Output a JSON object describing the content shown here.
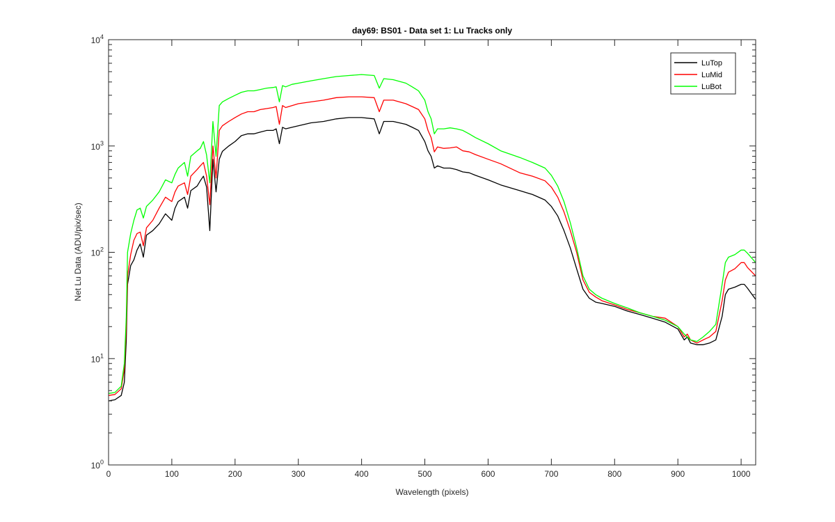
{
  "chart_data": {
    "type": "line",
    "title": "day69: BS01 - Data set 1: Lu Tracks only",
    "xlabel": "Wavelength (pixels)",
    "ylabel": "Net Lu Data (ADU/pix/sec)",
    "xlim": [
      0,
      1023
    ],
    "ylim": [
      1,
      10000
    ],
    "yscale": "log",
    "grid": false,
    "legend_position": "top-right",
    "x_ticks": [
      0,
      100,
      200,
      300,
      400,
      500,
      600,
      700,
      800,
      900,
      1000
    ],
    "x_tick_labels": [
      "0",
      "100",
      "200",
      "300",
      "400",
      "500",
      "600",
      "700",
      "800",
      "900",
      "1000"
    ],
    "y_ticks": [
      1,
      10,
      100,
      1000,
      10000
    ],
    "y_tick_labels": [
      {
        "base": "10",
        "exp": "0"
      },
      {
        "base": "10",
        "exp": "1"
      },
      {
        "base": "10",
        "exp": "2"
      },
      {
        "base": "10",
        "exp": "3"
      },
      {
        "base": "10",
        "exp": "4"
      }
    ],
    "series": [
      {
        "name": "LuTop",
        "color": "#000000",
        "points": [
          [
            0,
            4
          ],
          [
            10,
            4.1
          ],
          [
            20,
            4.5
          ],
          [
            25,
            6
          ],
          [
            28,
            15
          ],
          [
            30,
            50
          ],
          [
            35,
            75
          ],
          [
            40,
            85
          ],
          [
            45,
            105
          ],
          [
            50,
            120
          ],
          [
            55,
            90
          ],
          [
            60,
            145
          ],
          [
            70,
            160
          ],
          [
            80,
            185
          ],
          [
            90,
            230
          ],
          [
            100,
            200
          ],
          [
            105,
            260
          ],
          [
            110,
            300
          ],
          [
            120,
            330
          ],
          [
            125,
            260
          ],
          [
            130,
            380
          ],
          [
            140,
            420
          ],
          [
            145,
            470
          ],
          [
            150,
            520
          ],
          [
            155,
            410
          ],
          [
            160,
            160
          ],
          [
            165,
            750
          ],
          [
            170,
            370
          ],
          [
            175,
            750
          ],
          [
            180,
            890
          ],
          [
            190,
            1000
          ],
          [
            200,
            1100
          ],
          [
            210,
            1250
          ],
          [
            220,
            1300
          ],
          [
            230,
            1300
          ],
          [
            240,
            1350
          ],
          [
            250,
            1400
          ],
          [
            260,
            1400
          ],
          [
            265,
            1450
          ],
          [
            270,
            1050
          ],
          [
            275,
            1500
          ],
          [
            280,
            1450
          ],
          [
            290,
            1500
          ],
          [
            300,
            1550
          ],
          [
            320,
            1650
          ],
          [
            340,
            1700
          ],
          [
            360,
            1800
          ],
          [
            380,
            1850
          ],
          [
            400,
            1850
          ],
          [
            420,
            1800
          ],
          [
            428,
            1300
          ],
          [
            435,
            1700
          ],
          [
            450,
            1700
          ],
          [
            470,
            1600
          ],
          [
            480,
            1500
          ],
          [
            490,
            1400
          ],
          [
            500,
            1100
          ],
          [
            505,
            900
          ],
          [
            510,
            800
          ],
          [
            515,
            620
          ],
          [
            520,
            650
          ],
          [
            530,
            620
          ],
          [
            540,
            620
          ],
          [
            550,
            600
          ],
          [
            560,
            570
          ],
          [
            570,
            560
          ],
          [
            580,
            530
          ],
          [
            600,
            480
          ],
          [
            620,
            430
          ],
          [
            650,
            380
          ],
          [
            670,
            350
          ],
          [
            690,
            310
          ],
          [
            700,
            270
          ],
          [
            710,
            220
          ],
          [
            720,
            160
          ],
          [
            730,
            110
          ],
          [
            740,
            70
          ],
          [
            750,
            45
          ],
          [
            760,
            37
          ],
          [
            770,
            34
          ],
          [
            780,
            33
          ],
          [
            800,
            31
          ],
          [
            820,
            28
          ],
          [
            840,
            26
          ],
          [
            860,
            24
          ],
          [
            880,
            22
          ],
          [
            900,
            19
          ],
          [
            910,
            15
          ],
          [
            915,
            16
          ],
          [
            920,
            14
          ],
          [
            930,
            13.5
          ],
          [
            940,
            13.5
          ],
          [
            950,
            14
          ],
          [
            960,
            15
          ],
          [
            970,
            25
          ],
          [
            975,
            40
          ],
          [
            980,
            45
          ],
          [
            990,
            47
          ],
          [
            1000,
            50
          ],
          [
            1005,
            50
          ],
          [
            1010,
            46
          ],
          [
            1023,
            36
          ]
        ]
      },
      {
        "name": "LuMid",
        "color": "#ff0000",
        "points": [
          [
            0,
            4.5
          ],
          [
            10,
            4.6
          ],
          [
            20,
            5.2
          ],
          [
            25,
            8
          ],
          [
            28,
            20
          ],
          [
            30,
            60
          ],
          [
            35,
            95
          ],
          [
            40,
            130
          ],
          [
            45,
            150
          ],
          [
            50,
            155
          ],
          [
            55,
            115
          ],
          [
            60,
            170
          ],
          [
            70,
            200
          ],
          [
            80,
            260
          ],
          [
            90,
            330
          ],
          [
            100,
            300
          ],
          [
            105,
            370
          ],
          [
            110,
            420
          ],
          [
            120,
            450
          ],
          [
            125,
            350
          ],
          [
            130,
            520
          ],
          [
            140,
            600
          ],
          [
            145,
            650
          ],
          [
            150,
            700
          ],
          [
            155,
            520
          ],
          [
            160,
            280
          ],
          [
            165,
            1000
          ],
          [
            170,
            500
          ],
          [
            175,
            1400
          ],
          [
            180,
            1550
          ],
          [
            190,
            1700
          ],
          [
            200,
            1850
          ],
          [
            210,
            2000
          ],
          [
            220,
            2100
          ],
          [
            230,
            2100
          ],
          [
            240,
            2200
          ],
          [
            250,
            2250
          ],
          [
            260,
            2300
          ],
          [
            265,
            2350
          ],
          [
            270,
            1600
          ],
          [
            275,
            2400
          ],
          [
            280,
            2300
          ],
          [
            290,
            2400
          ],
          [
            300,
            2500
          ],
          [
            320,
            2600
          ],
          [
            340,
            2700
          ],
          [
            360,
            2850
          ],
          [
            380,
            2900
          ],
          [
            400,
            2900
          ],
          [
            420,
            2850
          ],
          [
            428,
            2100
          ],
          [
            435,
            2700
          ],
          [
            450,
            2700
          ],
          [
            470,
            2500
          ],
          [
            480,
            2350
          ],
          [
            490,
            2200
          ],
          [
            500,
            1800
          ],
          [
            505,
            1400
          ],
          [
            510,
            1200
          ],
          [
            515,
            880
          ],
          [
            520,
            980
          ],
          [
            530,
            950
          ],
          [
            540,
            960
          ],
          [
            550,
            980
          ],
          [
            560,
            900
          ],
          [
            570,
            880
          ],
          [
            580,
            830
          ],
          [
            600,
            750
          ],
          [
            620,
            680
          ],
          [
            650,
            560
          ],
          [
            670,
            520
          ],
          [
            690,
            470
          ],
          [
            700,
            410
          ],
          [
            710,
            330
          ],
          [
            720,
            240
          ],
          [
            730,
            160
          ],
          [
            740,
            100
          ],
          [
            750,
            55
          ],
          [
            760,
            42
          ],
          [
            770,
            38
          ],
          [
            780,
            35
          ],
          [
            800,
            32
          ],
          [
            820,
            29
          ],
          [
            840,
            27
          ],
          [
            860,
            25
          ],
          [
            880,
            24
          ],
          [
            900,
            20
          ],
          [
            910,
            16
          ],
          [
            915,
            17
          ],
          [
            920,
            15
          ],
          [
            930,
            14
          ],
          [
            940,
            15
          ],
          [
            950,
            16
          ],
          [
            960,
            18
          ],
          [
            970,
            35
          ],
          [
            975,
            55
          ],
          [
            980,
            65
          ],
          [
            990,
            70
          ],
          [
            1000,
            80
          ],
          [
            1005,
            80
          ],
          [
            1010,
            72
          ],
          [
            1023,
            60
          ]
        ]
      },
      {
        "name": "LuBot",
        "color": "#00ff00",
        "points": [
          [
            0,
            4.7
          ],
          [
            10,
            4.8
          ],
          [
            20,
            5.5
          ],
          [
            25,
            9
          ],
          [
            28,
            25
          ],
          [
            30,
            100
          ],
          [
            35,
            150
          ],
          [
            40,
            200
          ],
          [
            45,
            250
          ],
          [
            50,
            260
          ],
          [
            55,
            210
          ],
          [
            60,
            270
          ],
          [
            70,
            310
          ],
          [
            80,
            370
          ],
          [
            90,
            480
          ],
          [
            100,
            450
          ],
          [
            105,
            540
          ],
          [
            110,
            620
          ],
          [
            120,
            700
          ],
          [
            125,
            520
          ],
          [
            130,
            800
          ],
          [
            140,
            900
          ],
          [
            145,
            950
          ],
          [
            150,
            1100
          ],
          [
            155,
            820
          ],
          [
            160,
            450
          ],
          [
            165,
            1700
          ],
          [
            170,
            800
          ],
          [
            175,
            2400
          ],
          [
            180,
            2600
          ],
          [
            190,
            2800
          ],
          [
            200,
            3000
          ],
          [
            210,
            3200
          ],
          [
            220,
            3300
          ],
          [
            230,
            3300
          ],
          [
            240,
            3400
          ],
          [
            250,
            3500
          ],
          [
            260,
            3550
          ],
          [
            265,
            3600
          ],
          [
            270,
            2600
          ],
          [
            275,
            3700
          ],
          [
            280,
            3600
          ],
          [
            290,
            3800
          ],
          [
            300,
            3900
          ],
          [
            320,
            4100
          ],
          [
            340,
            4300
          ],
          [
            360,
            4500
          ],
          [
            380,
            4600
          ],
          [
            400,
            4700
          ],
          [
            420,
            4600
          ],
          [
            428,
            3500
          ],
          [
            435,
            4300
          ],
          [
            450,
            4200
          ],
          [
            470,
            3900
          ],
          [
            480,
            3600
          ],
          [
            490,
            3300
          ],
          [
            500,
            2700
          ],
          [
            505,
            2100
          ],
          [
            510,
            1800
          ],
          [
            515,
            1300
          ],
          [
            520,
            1450
          ],
          [
            530,
            1450
          ],
          [
            540,
            1480
          ],
          [
            550,
            1450
          ],
          [
            560,
            1400
          ],
          [
            570,
            1300
          ],
          [
            580,
            1200
          ],
          [
            600,
            1050
          ],
          [
            620,
            900
          ],
          [
            650,
            780
          ],
          [
            670,
            700
          ],
          [
            690,
            620
          ],
          [
            700,
            530
          ],
          [
            710,
            420
          ],
          [
            720,
            300
          ],
          [
            730,
            190
          ],
          [
            740,
            110
          ],
          [
            750,
            60
          ],
          [
            760,
            45
          ],
          [
            770,
            40
          ],
          [
            780,
            37
          ],
          [
            800,
            33
          ],
          [
            820,
            30
          ],
          [
            840,
            27
          ],
          [
            860,
            25
          ],
          [
            880,
            23
          ],
          [
            900,
            20
          ],
          [
            910,
            17
          ],
          [
            915,
            16
          ],
          [
            920,
            15
          ],
          [
            930,
            14.5
          ],
          [
            940,
            16
          ],
          [
            950,
            18
          ],
          [
            960,
            21
          ],
          [
            970,
            50
          ],
          [
            975,
            80
          ],
          [
            980,
            90
          ],
          [
            990,
            95
          ],
          [
            1000,
            105
          ],
          [
            1005,
            105
          ],
          [
            1010,
            98
          ],
          [
            1023,
            80
          ]
        ]
      }
    ]
  }
}
